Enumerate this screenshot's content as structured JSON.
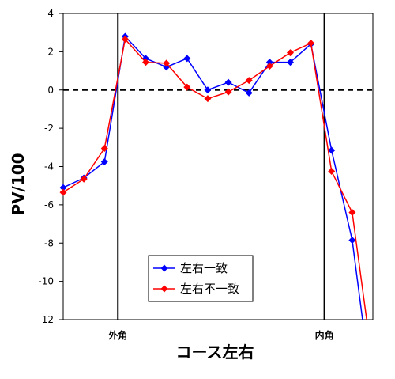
{
  "chart_data": {
    "type": "line",
    "xlabel": "コース左右",
    "ylabel": "PV/100",
    "ylim": [
      -12,
      4
    ],
    "yticks": [
      4,
      2,
      0,
      -2,
      -4,
      -6,
      -8,
      -10,
      -12
    ],
    "xlim": [
      0,
      15
    ],
    "reference_lines": [
      {
        "label": "外角",
        "x": 2.65
      },
      {
        "label": "内角",
        "x": 12.65
      }
    ],
    "zero_line": "dashed",
    "legend_position": "bottom-center",
    "colors": {
      "series1": "#0000ff",
      "series2": "#ff0000"
    },
    "series": [
      {
        "name": "左右一致",
        "x": [
          0,
          1,
          2,
          3,
          4,
          5,
          6,
          7,
          8,
          9,
          10,
          11,
          12,
          13,
          14,
          14.5
        ],
        "values": [
          -5.1,
          -4.6,
          -3.75,
          2.8,
          1.65,
          1.2,
          1.65,
          0.0,
          0.4,
          -0.15,
          1.45,
          1.45,
          2.4,
          -3.15,
          -7.85,
          -12.0
        ]
      },
      {
        "name": "左右不一致",
        "x": [
          0,
          1,
          2,
          3,
          4,
          5,
          6,
          7,
          8,
          9,
          10,
          11,
          12,
          13,
          14,
          14.7
        ],
        "values": [
          -5.35,
          -4.65,
          -3.05,
          2.65,
          1.45,
          1.4,
          0.15,
          -0.45,
          -0.1,
          0.5,
          1.25,
          1.95,
          2.45,
          -4.25,
          -6.4,
          -12.0
        ]
      }
    ]
  }
}
